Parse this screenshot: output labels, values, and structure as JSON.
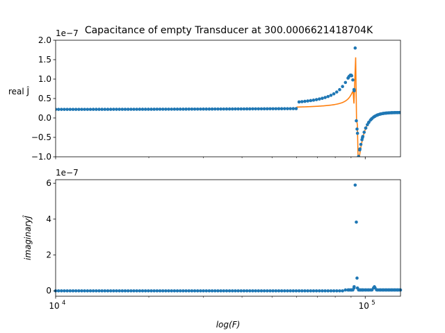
{
  "chart_data": [
    {
      "type": "scatter",
      "title": "Capacitance of empty Transducer at 300.0006621418704K",
      "xlabel": "",
      "ylabel": "real Ĵ",
      "xscale": "log",
      "xlim": [
        10000,
        130000
      ],
      "ylim": [
        -1.0,
        2.0
      ],
      "y_offset_label": "1e−7",
      "yticks": [
        -1.0,
        -0.5,
        0.0,
        0.5,
        1.0,
        1.5,
        2.0
      ],
      "ytick_labels": [
        "−1.0",
        "−0.5",
        "0.0",
        "0.5",
        "1.0",
        "1.5",
        "2.0"
      ],
      "grid": false,
      "colors": {
        "points": "#1f77b4",
        "fit": "#ff7f0e"
      }
    },
    {
      "type": "scatter",
      "title": "",
      "xlabel": "log(F)",
      "ylabel": "imaginaryĴ",
      "xscale": "log",
      "xlim": [
        10000,
        130000
      ],
      "ylim": [
        -0.3,
        6.2
      ],
      "y_offset_label": "1e−7",
      "yticks": [
        0,
        2,
        4,
        6
      ],
      "ytick_labels": [
        "0",
        "2",
        "4",
        "6"
      ],
      "xtick_labels": {
        "10000": "10",
        "100000": "10"
      },
      "xtick_exponents": {
        "10000": "4",
        "100000": "5"
      },
      "grid": false,
      "colors": {
        "points": "#1f77b4"
      }
    }
  ]
}
